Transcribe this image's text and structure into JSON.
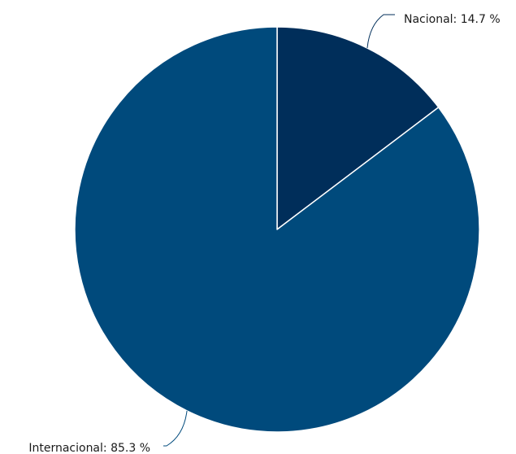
{
  "chart_data": {
    "type": "pie",
    "title": "",
    "categories": [
      "Nacional",
      "Internacional"
    ],
    "values": [
      14.7,
      85.3
    ],
    "unit": "%",
    "labels": [
      "Nacional: 14.7 %",
      "Internacional: 85.3 %"
    ],
    "colors": [
      "#002e5a",
      "#004a7c"
    ],
    "start_angle_deg": 0,
    "direction": "clockwise",
    "legend": "none"
  }
}
